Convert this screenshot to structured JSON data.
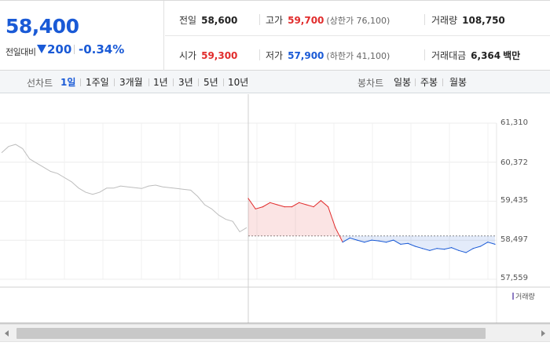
{
  "quote": {
    "price": "58,400",
    "change_label": "전일대비",
    "change_direction_icon": "down-triangle-icon",
    "change_amount": "200",
    "change_percent": "-0.34%",
    "prev_close": {
      "label": "전일",
      "value": "58,600"
    },
    "open": {
      "label": "시가",
      "value": "59,300"
    },
    "high": {
      "label": "고가",
      "value": "59,700",
      "limit": "(상한가 76,100)"
    },
    "low": {
      "label": "저가",
      "value": "57,900",
      "limit": "(하한가 41,100)"
    },
    "volume": {
      "label": "거래량",
      "value": "108,750"
    },
    "trade_value": {
      "label": "거래대금",
      "value": "6,364",
      "unit": "백만"
    },
    "colors": {
      "down": "#1a5ad6",
      "up": "#e12c2c"
    }
  },
  "toolbar": {
    "line_chart_label": "선차트",
    "periods": [
      "1일",
      "1주일",
      "3개월",
      "1년",
      "3년",
      "5년",
      "10년"
    ],
    "active_period": "1일",
    "candle_chart_label": "봉차트",
    "candle_periods": [
      "일봉",
      "주봉",
      "월봉"
    ]
  },
  "chart_data": {
    "type": "line",
    "y_ticks": [
      "61,310",
      "60,372",
      "59,435",
      "58,497",
      "57,559"
    ],
    "ylim": [
      57559,
      61310
    ],
    "reference_price": 58600,
    "volume_label": "거래량",
    "series": [
      {
        "name": "prev_day",
        "color": "#bdbdbd",
        "values": [
          60600,
          60750,
          60800,
          60700,
          60450,
          60350,
          60250,
          60150,
          60100,
          60000,
          59900,
          59750,
          59650,
          59600,
          59650,
          59750,
          59750,
          59800,
          59780,
          59760,
          59740,
          59800,
          59820,
          59780,
          59760,
          59740,
          59720,
          59700,
          59550,
          59350,
          59250,
          59100,
          59000,
          58950,
          58700,
          58800
        ]
      },
      {
        "name": "today",
        "color_up": "#e12c2c",
        "color_down": "#1a5ad6",
        "values": [
          59500,
          59250,
          59300,
          59400,
          59350,
          59300,
          59300,
          59400,
          59350,
          59300,
          59450,
          59300,
          58800,
          58450,
          58550,
          58500,
          58450,
          58500,
          58480,
          58450,
          58500,
          58400,
          58420,
          58350,
          58300,
          58250,
          58300,
          58280,
          58320,
          58250,
          58200,
          58300,
          58350,
          58450,
          58400
        ]
      }
    ]
  }
}
